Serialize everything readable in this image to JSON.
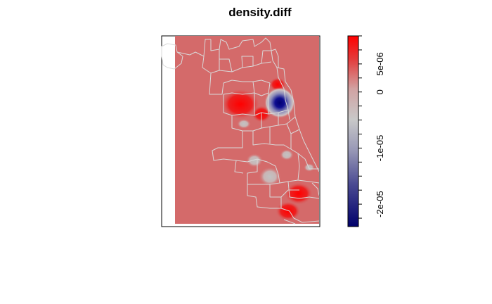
{
  "title": "density.diff",
  "colorbar": {
    "tick_labels": [
      "5e-06",
      "0",
      "-1e-05",
      "-2e-05"
    ],
    "tick_values": [
      5e-06,
      0,
      -1e-05,
      -2e-05
    ],
    "range": [
      -2.4e-05,
      1e-05
    ],
    "colors": {
      "high": "#ff0000",
      "zero": "#c8c8c8",
      "low": "#00006b"
    }
  },
  "map": {
    "background_color": "#d46a6a",
    "boundary_color": "#d9d9d9",
    "hotspots": [
      {
        "kind": "negative",
        "color": "#0a0a8c",
        "value": -2.3e-05
      },
      {
        "kind": "neutral",
        "color": "#c4c4c4",
        "value": -9e-06
      },
      {
        "kind": "positive",
        "color": "#ff0000",
        "value": 9e-06
      }
    ]
  }
}
